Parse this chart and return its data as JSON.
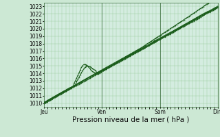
{
  "title": "",
  "xlabel": "Pression niveau de la mer ( hPa )",
  "ylabel": "",
  "bg_color": "#cce8d4",
  "plot_bg_color": "#d4ece0",
  "grid_color": "#99cc99",
  "line_color": "#1a5c1a",
  "ylim": [
    1009.5,
    1023.5
  ],
  "yticks": [
    1010,
    1011,
    1012,
    1013,
    1014,
    1015,
    1016,
    1017,
    1018,
    1019,
    1020,
    1021,
    1022,
    1023
  ],
  "day_labels": [
    "Jeu",
    "Ven",
    "Sam",
    "Dim"
  ],
  "day_positions": [
    0,
    48,
    96,
    144
  ],
  "total_points": 145,
  "tick_fontsize": 5.5,
  "label_fontsize": 7.5
}
